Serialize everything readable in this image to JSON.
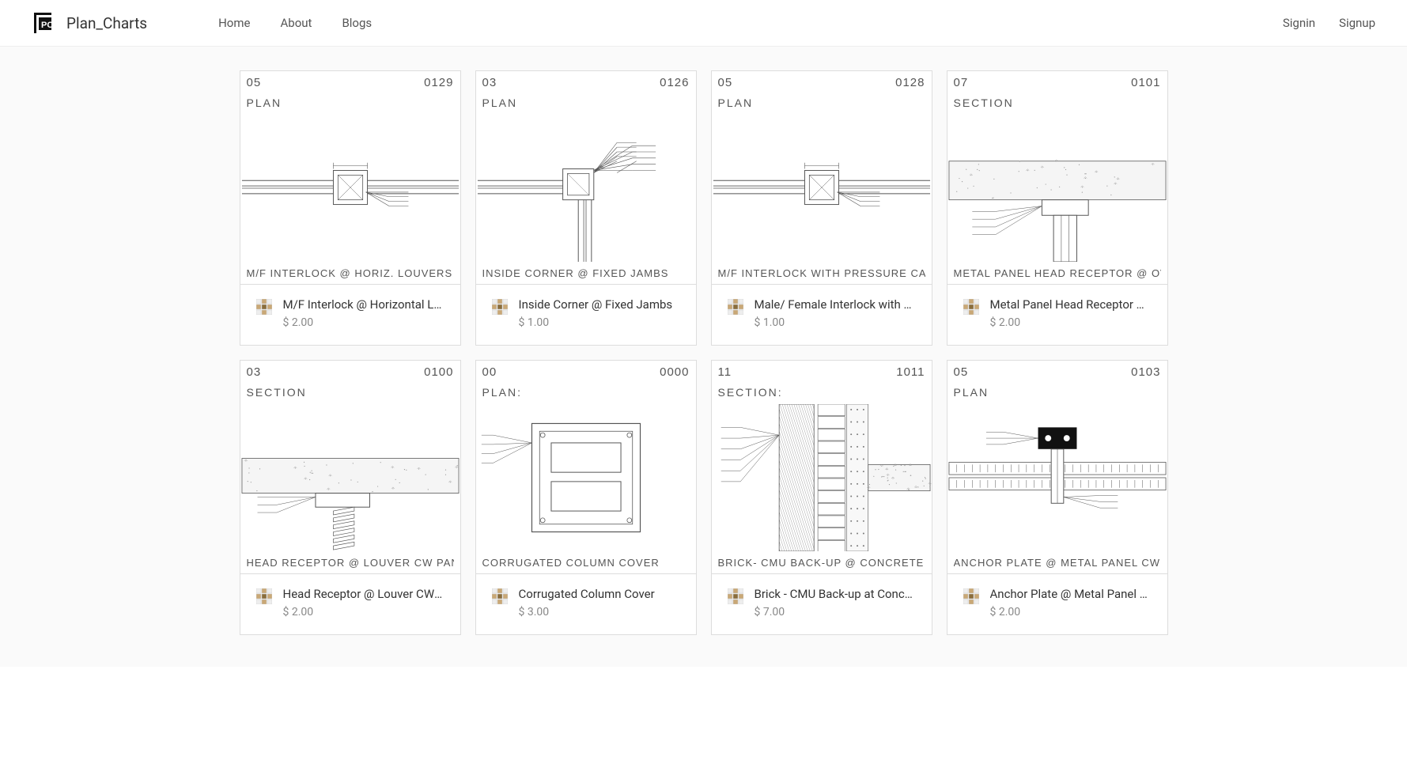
{
  "brand": "Plan_Charts",
  "nav": {
    "home": "Home",
    "about": "About",
    "blogs": "Blogs"
  },
  "auth": {
    "signin": "Signin",
    "signup": "Signup"
  },
  "colors": {
    "text": "#333333",
    "muted": "#888888",
    "border": "#dddddd",
    "page_bg": "#fafafa",
    "card_bg": "#ffffff",
    "thumb_stroke": "#555555",
    "concrete_fill": "#f5f5f5",
    "icon_tan": "#c9a876"
  },
  "cards": [
    {
      "code_left": "05",
      "code_right": "0129",
      "type_label": "PLAN",
      "caption": "M/F INTERLOCK  @ HORIZ. LOUVERS",
      "title": "M/F Interlock @ Horizontal Lo…",
      "price": "$ 2.00",
      "art": "interlock_center"
    },
    {
      "code_left": "03",
      "code_right": "0126",
      "type_label": "PLAN",
      "caption": "INSIDE CORNER @ FIXED JAMBS",
      "title": "Inside Corner @ Fixed Jambs",
      "price": "$ 1.00",
      "art": "inside_corner"
    },
    {
      "code_left": "05",
      "code_right": "0128",
      "type_label": "PLAN",
      "caption": "M/F INTERLOCK WITH PRESSURE CAP",
      "title": "Male/ Female Interlock with Pr…",
      "price": "$ 1.00",
      "art": "interlock_center"
    },
    {
      "code_left": "07",
      "code_right": "0101",
      "type_label": "SECTION",
      "caption": "METAL PANEL HEAD RECEPTOR @ OVERHANG",
      "title": "Metal Panel Head Receptor @…",
      "price": "$ 2.00",
      "art": "head_receptor"
    },
    {
      "code_left": "03",
      "code_right": "0100",
      "type_label": "SECTION",
      "caption": "HEAD RECEPTOR @ LOUVER CW PANEL",
      "title": "Head Receptor @ Louver CW …",
      "price": "$ 2.00",
      "art": "head_receptor_louver"
    },
    {
      "code_left": "00",
      "code_right": "0000",
      "type_label": "PLAN:",
      "caption": "CORRUGATED  COLUMN COVER",
      "title": "Corrugated Column Cover",
      "price": "$ 3.00",
      "art": "column_cover"
    },
    {
      "code_left": "11",
      "code_right": "1011",
      "type_label": "SECTION:",
      "caption": "BRICK- CMU BACK-UP @ CONCRETE  SLAB",
      "title": "Brick - CMU Back-up at Concr…",
      "price": "$ 7.00",
      "art": "brick_cmu"
    },
    {
      "code_left": "05",
      "code_right": "0103",
      "type_label": "PLAN",
      "caption": "ANCHOR PLATE @ METAL PANEL CW",
      "title": "Anchor Plate @ Metal Panel CW",
      "price": "$ 2.00",
      "art": "anchor_plate"
    }
  ]
}
